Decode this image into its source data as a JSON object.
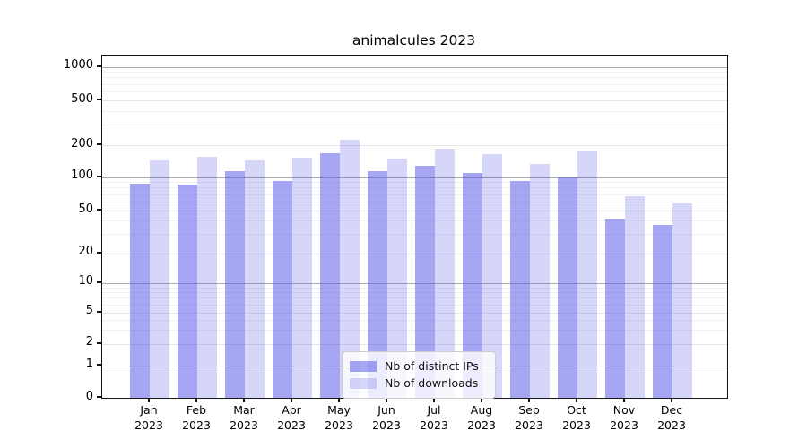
{
  "title": "animalcules 2023",
  "chart_data": {
    "type": "bar",
    "title": "animalcules 2023",
    "yscale": "pseudo-log",
    "grid": true,
    "legend_position": "bottom-center",
    "yticks": [
      0,
      1,
      2,
      5,
      10,
      20,
      50,
      100,
      200,
      500,
      1000
    ],
    "ylim": [
      0,
      1000
    ],
    "xlabel": "",
    "ylabel": "",
    "year": "2023",
    "months": [
      "Jan",
      "Feb",
      "Mar",
      "Apr",
      "May",
      "Jun",
      "Jul",
      "Aug",
      "Sep",
      "Oct",
      "Nov",
      "Dec"
    ],
    "categories": [
      "Jan 2023",
      "Feb 2023",
      "Mar 2023",
      "Apr 2023",
      "May 2023",
      "Jun 2023",
      "Jul 2023",
      "Aug 2023",
      "Sep 2023",
      "Oct 2023",
      "Nov 2023",
      "Dec 2023"
    ],
    "series": [
      {
        "name": "Nb of distinct IPs",
        "color": "rgba(85,85,230,0.52)",
        "color_hex_on_white": "#A7A7F2",
        "values": [
          88,
          86,
          114,
          93,
          167,
          114,
          129,
          110,
          92,
          100,
          42,
          37
        ]
      },
      {
        "name": "Nb of downloads",
        "color": "rgba(85,85,230,0.24)",
        "color_hex_on_white": "#D6D6F9",
        "values": [
          145,
          157,
          143,
          154,
          222,
          151,
          186,
          164,
          134,
          179,
          68,
          58
        ]
      }
    ]
  }
}
